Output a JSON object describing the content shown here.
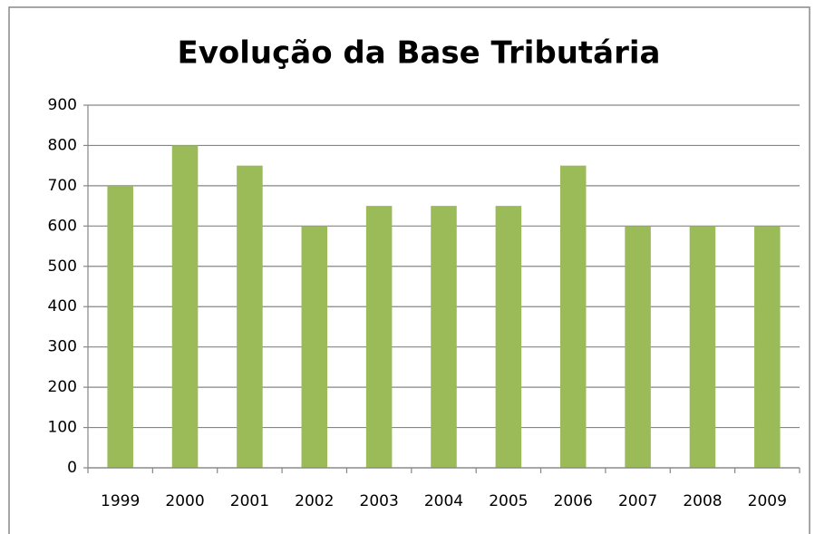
{
  "chart_data": {
    "type": "bar",
    "title": "Evolução da Base Tributária",
    "categories": [
      "1999",
      "2000",
      "2001",
      "2002",
      "2003",
      "2004",
      "2005",
      "2006",
      "2007",
      "2008",
      "2009"
    ],
    "values": [
      700,
      800,
      750,
      600,
      650,
      650,
      650,
      750,
      600,
      600,
      600
    ],
    "color": "#9bbb59",
    "ylim": [
      0,
      900
    ],
    "yticks": [
      0,
      100,
      200,
      300,
      400,
      500,
      600,
      700,
      800,
      900
    ],
    "grid": true
  }
}
